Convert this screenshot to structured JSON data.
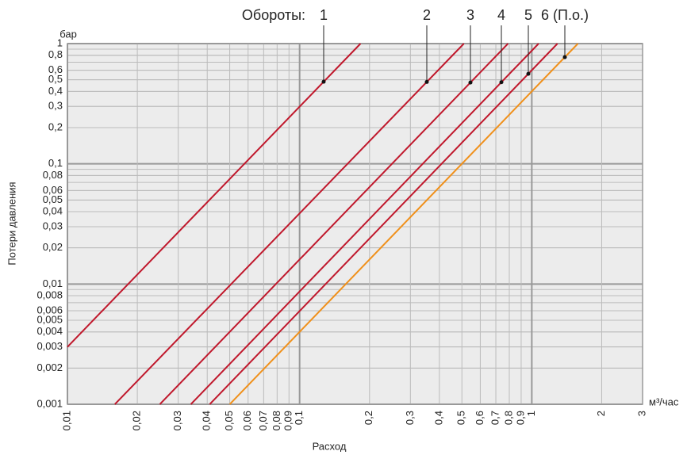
{
  "chart_data": {
    "type": "line",
    "legend_title": "Обороты:",
    "x_label": "Расход",
    "x_unit": "м³/час",
    "y_label": "Потери давления",
    "y_unit": "бар",
    "xscale": "log",
    "yscale": "log",
    "grid": true,
    "xlim": [
      0.01,
      3
    ],
    "ylim": [
      0.001,
      1
    ],
    "xticks": [
      {
        "value": 0.01,
        "label": "0,01"
      },
      {
        "value": 0.02,
        "label": "0,02"
      },
      {
        "value": 0.03,
        "label": "0,03"
      },
      {
        "value": 0.04,
        "label": "0,04"
      },
      {
        "value": 0.05,
        "label": "0,05"
      },
      {
        "value": 0.06,
        "label": "0,06"
      },
      {
        "value": 0.07,
        "label": "0,07"
      },
      {
        "value": 0.08,
        "label": "0,08"
      },
      {
        "value": 0.09,
        "label": "0,09"
      },
      {
        "value": 0.1,
        "label": "0,1"
      },
      {
        "value": 0.2,
        "label": "0,2"
      },
      {
        "value": 0.3,
        "label": "0,3"
      },
      {
        "value": 0.4,
        "label": "0,4"
      },
      {
        "value": 0.5,
        "label": "0,5"
      },
      {
        "value": 0.6,
        "label": "0,6"
      },
      {
        "value": 0.7,
        "label": "0,7"
      },
      {
        "value": 0.8,
        "label": "0,8"
      },
      {
        "value": 0.9,
        "label": "0,9"
      },
      1,
      2,
      3
    ],
    "yticks": [
      {
        "value": 0.001,
        "label": "0,001"
      },
      {
        "value": 0.002,
        "label": "0,002"
      },
      {
        "value": 0.003,
        "label": "0,003"
      },
      {
        "value": 0.004,
        "label": "0,004"
      },
      {
        "value": 0.005,
        "label": "0,005"
      },
      {
        "value": 0.006,
        "label": "0,006"
      },
      {
        "value": 0.008,
        "label": "0,008"
      },
      {
        "value": 0.01,
        "label": "0,01"
      },
      {
        "value": 0.02,
        "label": "0,02"
      },
      {
        "value": 0.03,
        "label": "0,03"
      },
      {
        "value": 0.04,
        "label": "0,04"
      },
      {
        "value": 0.05,
        "label": "0,05"
      },
      {
        "value": 0.06,
        "label": "0,06"
      },
      {
        "value": 0.08,
        "label": "0,08"
      },
      {
        "value": 0.1,
        "label": "0,1"
      },
      {
        "value": 0.2,
        "label": "0,2"
      },
      {
        "value": 0.3,
        "label": "0,3"
      },
      {
        "value": 0.4,
        "label": "0,4"
      },
      {
        "value": 0.5,
        "label": "0,5"
      },
      {
        "value": 0.6,
        "label": "0,6"
      },
      {
        "value": 0.8,
        "label": "0,8"
      },
      1
    ],
    "series": [
      {
        "name": "1",
        "color": "#c0182c",
        "x": [
          0.01,
          0.183
        ],
        "values": [
          0.003,
          1
        ]
      },
      {
        "name": "2",
        "color": "#c0182c",
        "x": [
          0.016,
          0.51
        ],
        "values": [
          0.001,
          1
        ]
      },
      {
        "name": "3",
        "color": "#c0182c",
        "x": [
          0.025,
          0.79
        ],
        "values": [
          0.001,
          1
        ]
      },
      {
        "name": "4",
        "color": "#c0182c",
        "x": [
          0.034,
          1.07
        ],
        "values": [
          0.001,
          1
        ]
      },
      {
        "name": "5",
        "color": "#c0182c",
        "x": [
          0.041,
          1.29
        ],
        "values": [
          0.001,
          1
        ]
      },
      {
        "name": "6 (П.о.)",
        "color": "#f0901a",
        "x": [
          0.05,
          1.58
        ],
        "values": [
          0.001,
          1
        ]
      }
    ]
  }
}
